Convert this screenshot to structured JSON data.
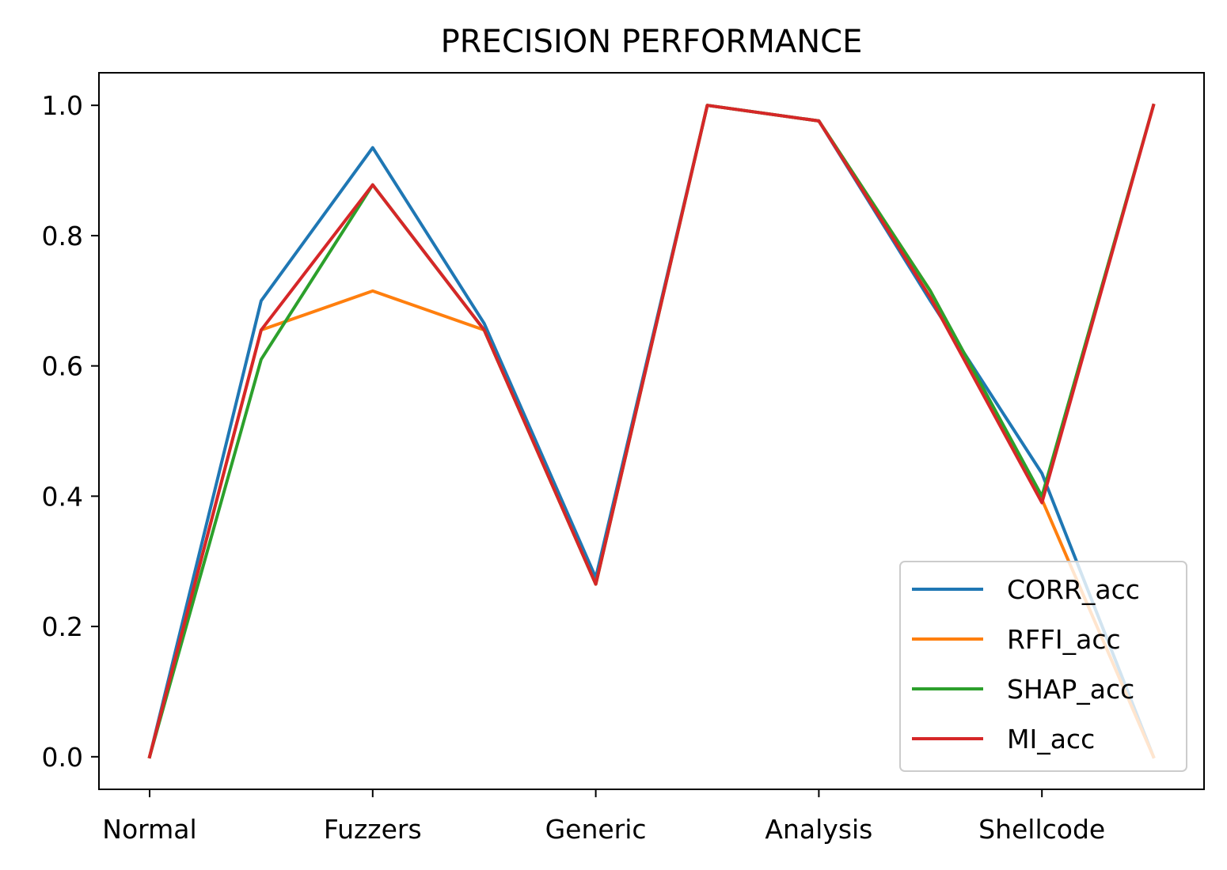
{
  "chart_data": {
    "type": "line",
    "title": "PRECISION PERFORMANCE",
    "xlabel": "",
    "ylabel": "",
    "categories": [
      "Normal",
      "",
      "Fuzzers",
      "",
      "Generic",
      "",
      "Analysis",
      "",
      "Shellcode",
      ""
    ],
    "x_tick_labels": [
      "Normal",
      "Fuzzers",
      "Generic",
      "Analysis",
      "Shellcode"
    ],
    "y_ticks": [
      "0.0",
      "0.2",
      "0.4",
      "0.6",
      "0.8",
      "1.0"
    ],
    "ylim": [
      -0.05,
      1.05
    ],
    "grid": false,
    "legend_position": "lower right",
    "series": [
      {
        "name": "CORR_acc",
        "color": "#1f77b4",
        "values": [
          0.0,
          0.7,
          0.935,
          0.665,
          0.275,
          1.0,
          0.976,
          0.7,
          0.435,
          0.0
        ]
      },
      {
        "name": "RFFI_acc",
        "color": "#ff7f0e",
        "values": [
          0.0,
          0.655,
          0.715,
          0.655,
          0.265,
          1.0,
          0.976,
          0.715,
          0.395,
          0.0
        ]
      },
      {
        "name": "SHAP_acc",
        "color": "#2ca02c",
        "values": [
          0.0,
          0.61,
          0.878,
          0.655,
          0.265,
          1.0,
          0.976,
          0.715,
          0.4,
          1.0
        ]
      },
      {
        "name": "MI_acc",
        "color": "#d62728",
        "values": [
          0.0,
          0.655,
          0.878,
          0.655,
          0.265,
          1.0,
          0.976,
          0.705,
          0.39,
          1.0
        ]
      }
    ]
  }
}
